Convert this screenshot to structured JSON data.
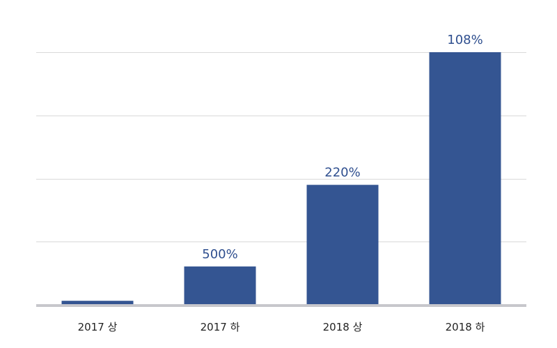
{
  "chart_data": {
    "type": "bar",
    "categories": [
      "2017 상",
      "2017 하",
      "2018 상",
      "2018 하"
    ],
    "values": [
      1.6,
      15.2,
      47.5,
      100
    ],
    "data_labels": [
      "",
      "500%",
      "220%",
      "108%"
    ],
    "title": "",
    "xlabel": "",
    "ylabel": "",
    "ylim": [
      0,
      100
    ],
    "gridlines": [
      25,
      50,
      75,
      100
    ],
    "grid": true,
    "legend": "none",
    "colors": {
      "bar": "#345592",
      "label": "#2f4f8f",
      "grid": "#d9d9d9",
      "baseline": "#c7c7cc"
    }
  }
}
